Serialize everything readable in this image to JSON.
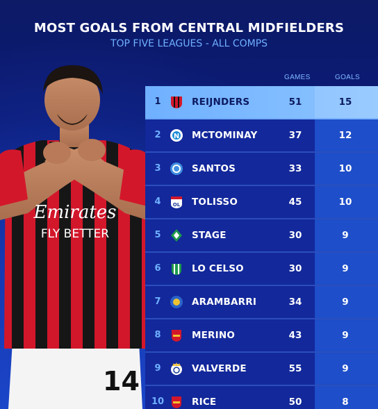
{
  "header": {
    "title": "MOST GOALS FROM CENTRAL MIDFIELDERS",
    "subtitle": "TOP FIVE LEAGUES - ALL COMPS"
  },
  "columns": {
    "games": "GAMES",
    "goals": "GOALS"
  },
  "shirt": {
    "sponsor_1": "Emirates",
    "sponsor_2": "FLY BETTER",
    "number": "14"
  },
  "rows": [
    {
      "rank": "1",
      "name": "REIJNDERS",
      "games": "51",
      "goals": "15",
      "club_icon": "ac-milan-crest"
    },
    {
      "rank": "2",
      "name": "MCTOMINAY",
      "games": "37",
      "goals": "12",
      "club_icon": "napoli-crest"
    },
    {
      "rank": "3",
      "name": "SANTOS",
      "games": "33",
      "goals": "10",
      "club_icon": "strasbourg-crest"
    },
    {
      "rank": "4",
      "name": "TOLISSO",
      "games": "45",
      "goals": "10",
      "club_icon": "lyon-crest"
    },
    {
      "rank": "5",
      "name": "STAGE",
      "games": "30",
      "goals": "9",
      "club_icon": "werder-bremen-crest"
    },
    {
      "rank": "6",
      "name": "LO CELSO",
      "games": "30",
      "goals": "9",
      "club_icon": "real-betis-crest"
    },
    {
      "rank": "7",
      "name": "ARAMBARRI",
      "games": "34",
      "goals": "9",
      "club_icon": "getafe-crest"
    },
    {
      "rank": "8",
      "name": "MERINO",
      "games": "43",
      "goals": "9",
      "club_icon": "arsenal-crest"
    },
    {
      "rank": "9",
      "name": "VALVERDE",
      "games": "55",
      "goals": "9",
      "club_icon": "real-madrid-crest"
    },
    {
      "rank": "10",
      "name": "RICE",
      "games": "50",
      "goals": "8",
      "club_icon": "arsenal-crest"
    }
  ],
  "colors": {
    "background": "#0b1a78",
    "accent": "#6fb0ff",
    "row": "#13289a",
    "highlight_row": "#8cc4ff",
    "milan_red": "#d3172b"
  }
}
